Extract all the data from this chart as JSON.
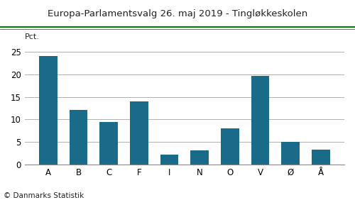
{
  "title": "Europa-Parlamentsvalg 26. maj 2019 - Tingløkkeskolen",
  "categories": [
    "A",
    "B",
    "C",
    "F",
    "I",
    "N",
    "O",
    "V",
    "Ø",
    "Å"
  ],
  "values": [
    24.1,
    12.1,
    9.5,
    14.0,
    2.3,
    3.1,
    8.0,
    19.7,
    5.0,
    3.3
  ],
  "bar_color": "#1a6b8a",
  "background_color": "#ffffff",
  "ylabel": "Pct.",
  "ylim": [
    0,
    27
  ],
  "yticks": [
    0,
    5,
    10,
    15,
    20,
    25
  ],
  "footer": "© Danmarks Statistik",
  "title_color": "#222222",
  "grid_color": "#b0b0b0",
  "title_fontsize": 9.5,
  "footer_fontsize": 7.5,
  "ylabel_fontsize": 8,
  "tick_fontsize": 8.5,
  "green_line_color": "#008000"
}
